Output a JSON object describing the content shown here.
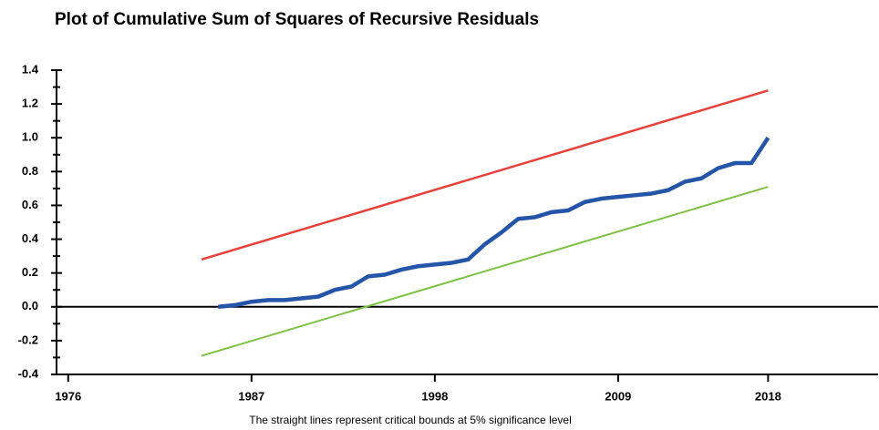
{
  "chart_data": {
    "type": "line",
    "title": "Plot of Cumulative Sum of Squares of Recursive Residuals",
    "note": "The straight lines represent critical bounds at 5% significance level",
    "xlim": [
      1975.3,
      2024.6
    ],
    "xticks": [
      1976,
      1987,
      1998,
      2009,
      2018
    ],
    "ylim": [
      -0.4,
      1.4
    ],
    "yticks": [
      -0.4,
      -0.2,
      {
        "value": 0,
        "label": "0.0"
      },
      0.2,
      0.4,
      0.6,
      0.8,
      {
        "value": 1,
        "label": "1.0"
      },
      1.2,
      1.4
    ],
    "minor_yticks": [
      -0.3,
      -0.1,
      0.1,
      0.3,
      0.5,
      0.7,
      0.9,
      1.1,
      1.3
    ],
    "series": [
      {
        "color": "#e8403a",
        "width": 2.5,
        "x": [
          1984,
          2018
        ],
        "values": [
          0.28,
          1.28
        ]
      },
      {
        "color": "#7dc242",
        "width": 2,
        "x": [
          1984,
          2018
        ],
        "values": [
          -0.29,
          0.71
        ]
      },
      {
        "color": "#2555a8",
        "width": 4.5,
        "x": [
          1985,
          1986,
          1987,
          1988,
          1989,
          1990,
          1991,
          1992,
          1993,
          1994,
          1995,
          1996,
          1997,
          1998,
          1999,
          2000,
          2001,
          2002,
          2003,
          2004,
          2005,
          2006,
          2007,
          2008,
          2009,
          2010,
          2011,
          2012,
          2013,
          2014,
          2015,
          2016,
          2017,
          2018
        ],
        "values": [
          0.0,
          0.01,
          0.03,
          0.04,
          0.04,
          0.05,
          0.06,
          0.1,
          0.12,
          0.18,
          0.19,
          0.22,
          0.24,
          0.25,
          0.26,
          0.28,
          0.37,
          0.44,
          0.52,
          0.53,
          0.56,
          0.57,
          0.62,
          0.64,
          0.65,
          0.66,
          0.67,
          0.69,
          0.74,
          0.76,
          0.82,
          0.85,
          0.85,
          1.0
        ]
      }
    ]
  }
}
